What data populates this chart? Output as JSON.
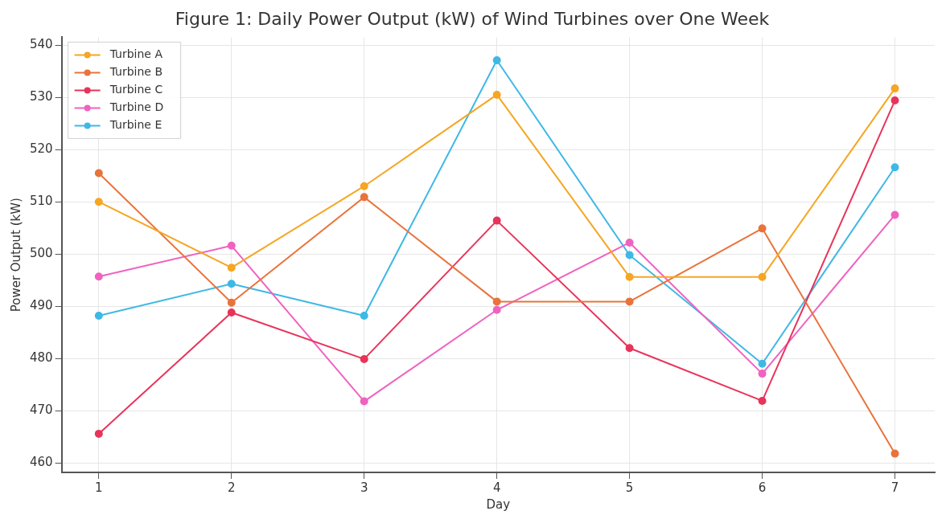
{
  "chart_data": {
    "type": "line",
    "title": "Figure 1: Daily Power Output (kW) of Wind Turbines over One Week",
    "xlabel": "Day",
    "ylabel": "Power Output (kW)",
    "x": [
      1,
      2,
      3,
      4,
      5,
      6,
      7
    ],
    "series": [
      {
        "name": "Turbine A",
        "color": "#f5a623",
        "values": [
          510.0,
          497.4,
          513.0,
          530.5,
          495.6,
          495.6,
          531.7
        ]
      },
      {
        "name": "Turbine B",
        "color": "#e8743b",
        "values": [
          515.5,
          490.7,
          510.9,
          490.9,
          490.9,
          504.9,
          461.8
        ]
      },
      {
        "name": "Turbine C",
        "color": "#e8345a",
        "values": [
          465.6,
          488.8,
          479.9,
          506.4,
          482.0,
          471.9,
          529.4
        ]
      },
      {
        "name": "Turbine D",
        "color": "#f062c0",
        "values": [
          495.7,
          501.6,
          471.8,
          489.3,
          502.2,
          477.1,
          507.5
        ]
      },
      {
        "name": "Turbine E",
        "color": "#3fb8e6",
        "values": [
          488.2,
          494.3,
          488.2,
          537.1,
          499.8,
          479.0,
          516.6
        ]
      }
    ],
    "xlim": [
      0.72,
      7.3
    ],
    "xticks": [
      1,
      2,
      3,
      4,
      5,
      6,
      7
    ],
    "ylim": [
      458.2,
      541.5
    ],
    "yticks": [
      460,
      470,
      480,
      490,
      500,
      510,
      520,
      530,
      540
    ],
    "grid": true,
    "legend": "top left",
    "marker": "circle",
    "line_style": "solid"
  }
}
